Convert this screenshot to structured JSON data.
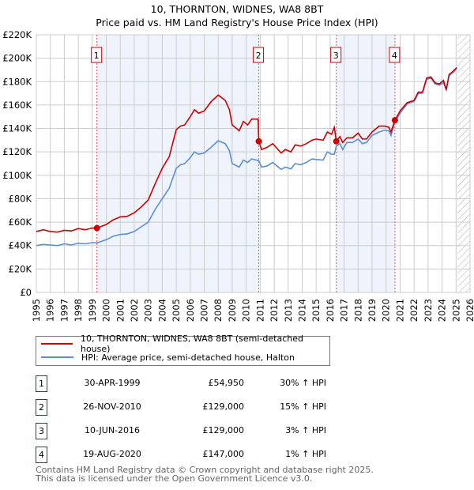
{
  "chart_data": {
    "type": "line",
    "title": "10, THORNTON, WIDNES, WA8 8BT",
    "subtitle": "Price paid vs. HM Land Registry's House Price Index (HPI)",
    "xlim": [
      1995,
      2026
    ],
    "ylim": [
      0,
      220000
    ],
    "yticks": [
      0,
      20000,
      40000,
      60000,
      80000,
      100000,
      120000,
      140000,
      160000,
      180000,
      200000,
      220000
    ],
    "ytick_labels": [
      "£0",
      "£20K",
      "£40K",
      "£60K",
      "£80K",
      "£100K",
      "£120K",
      "£140K",
      "£160K",
      "£180K",
      "£200K",
      "£220K"
    ],
    "xticks": [
      "1995",
      "1996",
      "1997",
      "1998",
      "1999",
      "2000",
      "2001",
      "2002",
      "2003",
      "2004",
      "2005",
      "2006",
      "2007",
      "2008",
      "2009",
      "2010",
      "2011",
      "2012",
      "2013",
      "2014",
      "2015",
      "2016",
      "2017",
      "2018",
      "2019",
      "2020",
      "2021",
      "2022",
      "2023",
      "2024",
      "2025",
      "2026"
    ],
    "grid": true,
    "forecast_start": 2025.1,
    "shaded_ranges": [
      [
        1999.33,
        2010.9
      ],
      [
        2016.44,
        2020.63
      ]
    ],
    "series": [
      {
        "name": "10, THORNTON, WIDNES, WA8 8BT (semi-detached house)",
        "color": "#cc0000",
        "points": [
          [
            1995,
            52000
          ],
          [
            1995.5,
            53500
          ],
          [
            1996,
            52000
          ],
          [
            1996.5,
            51500
          ],
          [
            1997,
            53000
          ],
          [
            1997.5,
            52500
          ],
          [
            1998,
            54500
          ],
          [
            1998.5,
            53500
          ],
          [
            1999,
            55000
          ],
          [
            1999.33,
            54950
          ],
          [
            2000,
            58000
          ],
          [
            2000.5,
            62000
          ],
          [
            2001,
            64500
          ],
          [
            2001.5,
            65000
          ],
          [
            2002,
            68000
          ],
          [
            2002.5,
            73000
          ],
          [
            2003,
            79000
          ],
          [
            2003.5,
            93000
          ],
          [
            2004,
            106000
          ],
          [
            2004.5,
            116000
          ],
          [
            2005,
            139000
          ],
          [
            2005.3,
            142000
          ],
          [
            2005.6,
            143000
          ],
          [
            2006,
            150000
          ],
          [
            2006.3,
            156000
          ],
          [
            2006.6,
            153000
          ],
          [
            2007,
            155000
          ],
          [
            2007.5,
            163000
          ],
          [
            2008,
            168500
          ],
          [
            2008.5,
            164000
          ],
          [
            2008.8,
            156000
          ],
          [
            2009,
            143000
          ],
          [
            2009.5,
            138000
          ],
          [
            2009.8,
            146000
          ],
          [
            2010.1,
            143000
          ],
          [
            2010.4,
            148000
          ],
          [
            2010.85,
            148000
          ],
          [
            2010.9,
            129000
          ],
          [
            2011.1,
            122000
          ],
          [
            2011.5,
            124000
          ],
          [
            2011.9,
            127000
          ],
          [
            2012.2,
            123000
          ],
          [
            2012.5,
            119000
          ],
          [
            2012.8,
            122000
          ],
          [
            2013.2,
            120000
          ],
          [
            2013.5,
            126000
          ],
          [
            2013.9,
            125000
          ],
          [
            2014.3,
            127000
          ],
          [
            2014.7,
            130000
          ],
          [
            2015,
            131000
          ],
          [
            2015.5,
            130000
          ],
          [
            2015.8,
            137000
          ],
          [
            2016.1,
            135000
          ],
          [
            2016.3,
            141000
          ],
          [
            2016.44,
            129000
          ],
          [
            2016.7,
            133000
          ],
          [
            2016.9,
            128000
          ],
          [
            2017.2,
            132000
          ],
          [
            2017.6,
            132000
          ],
          [
            2018,
            136000
          ],
          [
            2018.3,
            131000
          ],
          [
            2018.6,
            131000
          ],
          [
            2019,
            137000
          ],
          [
            2019.5,
            142000
          ],
          [
            2019.9,
            142000
          ],
          [
            2020.2,
            141000
          ],
          [
            2020.35,
            137000
          ],
          [
            2020.63,
            147000
          ],
          [
            2021,
            155000
          ],
          [
            2021.5,
            162000
          ],
          [
            2022,
            164000
          ],
          [
            2022.3,
            171000
          ],
          [
            2022.6,
            171000
          ],
          [
            2022.9,
            183000
          ],
          [
            2023.2,
            184000
          ],
          [
            2023.5,
            179000
          ],
          [
            2023.8,
            178000
          ],
          [
            2024.1,
            181000
          ],
          [
            2024.3,
            173000
          ],
          [
            2024.5,
            186000
          ],
          [
            2024.8,
            189000
          ],
          [
            2025.05,
            192000
          ]
        ]
      },
      {
        "name": "HPI: Average price, semi-detached house, Halton",
        "color": "#5b8fd4",
        "points": [
          [
            1995,
            40000
          ],
          [
            1995.5,
            41000
          ],
          [
            1996,
            40500
          ],
          [
            1996.5,
            40000
          ],
          [
            1997,
            41500
          ],
          [
            1997.5,
            40500
          ],
          [
            1998,
            42000
          ],
          [
            1998.5,
            41500
          ],
          [
            1999,
            42500
          ],
          [
            1999.33,
            42300
          ],
          [
            2000,
            45000
          ],
          [
            2000.5,
            48000
          ],
          [
            2001,
            49500
          ],
          [
            2001.5,
            50000
          ],
          [
            2002,
            52000
          ],
          [
            2002.5,
            56000
          ],
          [
            2003,
            60000
          ],
          [
            2003.5,
            71000
          ],
          [
            2004,
            80000
          ],
          [
            2004.5,
            89000
          ],
          [
            2005,
            106000
          ],
          [
            2005.3,
            109000
          ],
          [
            2005.6,
            110000
          ],
          [
            2006,
            115000
          ],
          [
            2006.3,
            120000
          ],
          [
            2006.6,
            118000
          ],
          [
            2007,
            119000
          ],
          [
            2007.5,
            124000
          ],
          [
            2008,
            129500
          ],
          [
            2008.5,
            127000
          ],
          [
            2008.8,
            121000
          ],
          [
            2009,
            110000
          ],
          [
            2009.5,
            107000
          ],
          [
            2009.8,
            113000
          ],
          [
            2010.1,
            111000
          ],
          [
            2010.4,
            114000
          ],
          [
            2010.9,
            112500
          ],
          [
            2011.1,
            107000
          ],
          [
            2011.5,
            108000
          ],
          [
            2011.9,
            111000
          ],
          [
            2012.2,
            108000
          ],
          [
            2012.5,
            105000
          ],
          [
            2012.8,
            107000
          ],
          [
            2013.2,
            105500
          ],
          [
            2013.5,
            110000
          ],
          [
            2013.9,
            109000
          ],
          [
            2014.3,
            111000
          ],
          [
            2014.7,
            114000
          ],
          [
            2015,
            113500
          ],
          [
            2015.5,
            113000
          ],
          [
            2015.8,
            120000
          ],
          [
            2016.1,
            118000
          ],
          [
            2016.3,
            118000
          ],
          [
            2016.44,
            125000
          ],
          [
            2016.7,
            127000
          ],
          [
            2016.9,
            122000
          ],
          [
            2017.2,
            128000
          ],
          [
            2017.6,
            128000
          ],
          [
            2018,
            131000
          ],
          [
            2018.3,
            127000
          ],
          [
            2018.6,
            128000
          ],
          [
            2019,
            134000
          ],
          [
            2019.5,
            137000
          ],
          [
            2019.9,
            138500
          ],
          [
            2020.2,
            138000
          ],
          [
            2020.35,
            134000
          ],
          [
            2020.63,
            145500
          ],
          [
            2021,
            153000
          ],
          [
            2021.5,
            161000
          ],
          [
            2022,
            163000
          ],
          [
            2022.3,
            170000
          ],
          [
            2022.6,
            170000
          ],
          [
            2022.9,
            182000
          ],
          [
            2023.2,
            183000
          ],
          [
            2023.5,
            178000
          ],
          [
            2023.8,
            177000
          ],
          [
            2024.1,
            179000
          ],
          [
            2024.3,
            173000
          ],
          [
            2024.5,
            185000
          ],
          [
            2024.8,
            188000
          ],
          [
            2025.05,
            191000
          ]
        ]
      }
    ],
    "sales": [
      {
        "num": "1",
        "x": 1999.33,
        "y": 54950,
        "date": "30-APR-1999",
        "price": "£54,950",
        "hpi": "30% ↑ HPI"
      },
      {
        "num": "2",
        "x": 2010.9,
        "y": 129000,
        "date": "26-NOV-2010",
        "price": "£129,000",
        "hpi": "15% ↑ HPI"
      },
      {
        "num": "3",
        "x": 2016.44,
        "y": 129000,
        "date": "10-JUN-2016",
        "price": "£129,000",
        "hpi": "3% ↑ HPI"
      },
      {
        "num": "4",
        "x": 2020.63,
        "y": 147000,
        "date": "19-AUG-2020",
        "price": "£147,000",
        "hpi": "1% ↑ HPI"
      }
    ]
  },
  "footer": {
    "line1": "Contains HM Land Registry data © Crown copyright and database right 2025.",
    "line2": "This data is licensed under the Open Government Licence v3.0."
  }
}
